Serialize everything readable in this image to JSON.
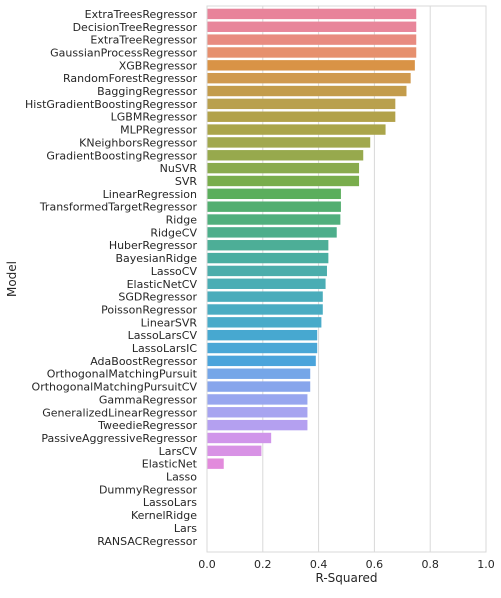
{
  "chart_data": {
    "type": "bar",
    "orientation": "horizontal",
    "xlabel": "R-Squared",
    "ylabel": "Model",
    "xlim": [
      0,
      1
    ],
    "xticks": [
      "0.0",
      "0.2",
      "0.4",
      "0.6",
      "0.8",
      "1.0"
    ],
    "grid": true,
    "categories": [
      "ExtraTreesRegressor",
      "DecisionTreeRegressor",
      "ExtraTreeRegressor",
      "GaussianProcessRegressor",
      "XGBRegressor",
      "RandomForestRegressor",
      "BaggingRegressor",
      "HistGradientBoostingRegressor",
      "LGBMRegressor",
      "MLPRegressor",
      "KNeighborsRegressor",
      "GradientBoostingRegressor",
      "NuSVR",
      "SVR",
      "LinearRegression",
      "TransformedTargetRegressor",
      "Ridge",
      "RidgeCV",
      "HuberRegressor",
      "BayesianRidge",
      "LassoCV",
      "ElasticNetCV",
      "SGDRegressor",
      "PoissonRegressor",
      "LinearSVR",
      "LassoLarsCV",
      "LassoLarsIC",
      "AdaBoostRegressor",
      "OrthogonalMatchingPursuit",
      "OrthogonalMatchingPursuitCV",
      "GammaRegressor",
      "GeneralizedLinearRegressor",
      "TweedieRegressor",
      "PassiveAggressiveRegressor",
      "LarsCV",
      "ElasticNet",
      "Lasso",
      "DummyRegressor",
      "LassoLars",
      "KernelRidge",
      "Lars",
      "RANSACRegressor"
    ],
    "values": [
      0.75,
      0.75,
      0.75,
      0.75,
      0.745,
      0.73,
      0.715,
      0.675,
      0.675,
      0.64,
      0.585,
      0.56,
      0.545,
      0.545,
      0.48,
      0.48,
      0.478,
      0.465,
      0.435,
      0.435,
      0.43,
      0.425,
      0.415,
      0.415,
      0.41,
      0.395,
      0.395,
      0.39,
      0.37,
      0.37,
      0.36,
      0.36,
      0.36,
      0.23,
      0.195,
      0.06,
      0,
      0,
      0,
      0,
      0,
      0
    ],
    "bar_colors": [
      "#e8839a",
      "#e8869b",
      "#e88b80",
      "#e6906e",
      "#d99346",
      "#d09a4f",
      "#c39c4b",
      "#b9a04d",
      "#b2a24a",
      "#aaa54a",
      "#a1a84e",
      "#97a94d",
      "#8aab4e",
      "#79ad4c",
      "#5bae5c",
      "#52ae70",
      "#50af7d",
      "#4dae8b",
      "#4dae97",
      "#4aaea1",
      "#4cadab",
      "#4aadb4",
      "#4aacbb",
      "#4aacc2",
      "#49abc9",
      "#47a8d0",
      "#4aa7d6",
      "#4ba4db",
      "#75a6e8",
      "#87a5ec",
      "#98a6ef",
      "#a7a4f0",
      "#b4a0f0",
      "#d095ea",
      "#d892e5",
      "#e28bdc",
      "#e88bd5",
      "#e98ccd",
      "#e98cc5",
      "#e88cbd",
      "#e88ab4",
      "#e88aac"
    ]
  }
}
